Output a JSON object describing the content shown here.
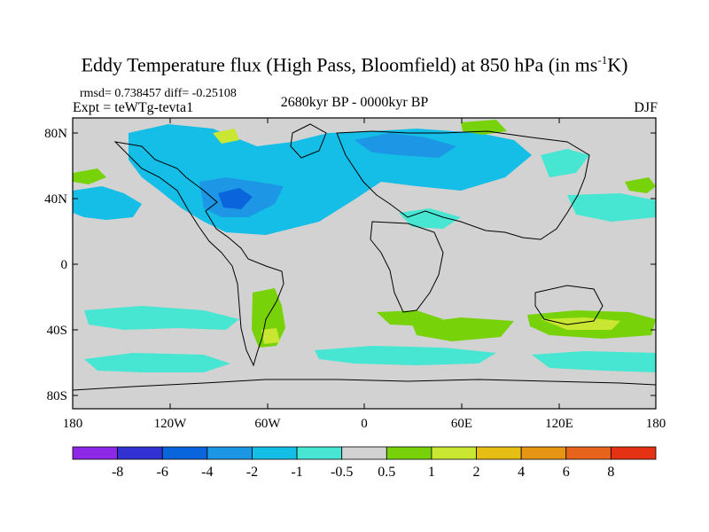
{
  "title": {
    "main": "Eddy Temperature flux (High Pass, Bloomfield) at 850 hPa (in ms",
    "sup": "-1",
    "end": "K)"
  },
  "stats": "rmsd= 0.738457 diff= -0.25108",
  "experiment": "Expt = teWTg-tevta1",
  "period": "2680kyr BP - 0000kyr BP",
  "season": "DJF",
  "axes": {
    "y_ticks": [
      "80N",
      "40N",
      "0",
      "40S",
      "80S"
    ],
    "x_ticks": [
      "180",
      "120W",
      "60W",
      "0",
      "60E",
      "120E",
      "180"
    ]
  },
  "colors": {
    "land_ocean_neutral": "#d2d2d2",
    "coast": "#000000"
  },
  "colorbar": {
    "colors": [
      "#8c28e6",
      "#3232d2",
      "#0a64dc",
      "#1e96e6",
      "#14bee6",
      "#46e6d2",
      "#d2d2d2",
      "#78d20a",
      "#c8e632",
      "#e6be14",
      "#e69614",
      "#e6641e",
      "#e63214"
    ],
    "labels": [
      "-8",
      "-6",
      "-4",
      "-2",
      "-1",
      "-0.5",
      "0.5",
      "1",
      "2",
      "4",
      "6",
      "8"
    ]
  }
}
